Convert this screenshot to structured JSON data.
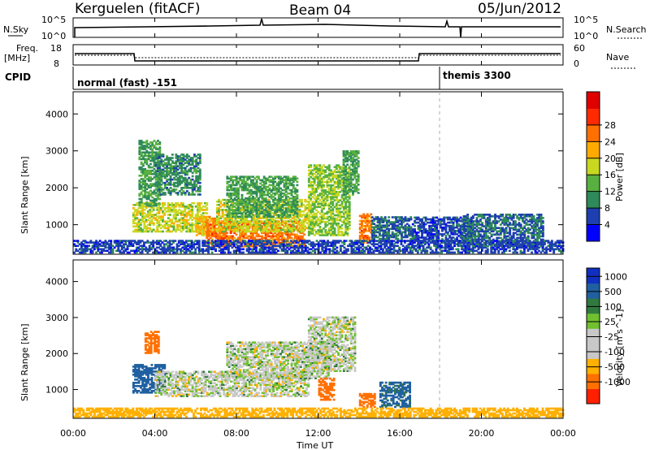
{
  "header": {
    "station": "Kerguelen (fitACF)",
    "beam": "Beam 04",
    "date": "05/Jun/2012"
  },
  "summary_panels": {
    "nsky": {
      "label": "N.Sky",
      "ticks": [
        "10^5",
        "10^0"
      ]
    },
    "nsearch": {
      "label": "N.Search",
      "ticks": [
        "10^5",
        "10^0"
      ]
    },
    "freq": {
      "label_1": "Freq.",
      "label_2": "[MHz]",
      "ticks": [
        "18",
        "8"
      ]
    },
    "nave": {
      "label": "Nave",
      "ticks": [
        "60",
        "0"
      ]
    },
    "cpid": {
      "label": "CPID",
      "modes": [
        "normal (fast) -151",
        "themis 3300"
      ]
    }
  },
  "colors": {
    "power": [
      "#0000ff",
      "#1e3fb0",
      "#2f8a5a",
      "#58b040",
      "#c8d820",
      "#ffaa00",
      "#ff7000",
      "#ff2a00",
      "#e00000"
    ],
    "velocity": [
      "#1030c0",
      "#2060a0",
      "#307a40",
      "#70c030",
      "#c8c8c8",
      "#c8c8c8",
      "#ffb000",
      "#ff7000",
      "#ff2000"
    ]
  },
  "chart_data": [
    {
      "type": "heatmap",
      "quantity": "power",
      "ylabel": "Slant Range [km]",
      "ylim": [
        200,
        4600
      ],
      "yticks": [
        "1000",
        "2000",
        "3000",
        "4000"
      ],
      "xlim": [
        "00:00",
        "24:00"
      ],
      "colorbar": {
        "label": "Power [dB]",
        "ticks": [
          "4",
          "8",
          "12",
          "16",
          "20",
          "24",
          "28"
        ]
      },
      "regions": [
        {
          "t": [
            2.9,
            6.5
          ],
          "r": [
            800,
            1600
          ],
          "v": 18
        },
        {
          "t": [
            3.2,
            4.2
          ],
          "r": [
            1500,
            3300
          ],
          "v": 12
        },
        {
          "t": [
            4.0,
            6.2
          ],
          "r": [
            1800,
            2900
          ],
          "v": 10
        },
        {
          "t": [
            6.0,
            7.0
          ],
          "r": [
            700,
            1200
          ],
          "v": 22
        },
        {
          "t": [
            6.5,
            11.3
          ],
          "r": [
            400,
            1100
          ],
          "v": 26
        },
        {
          "t": [
            7.0,
            11.5
          ],
          "r": [
            800,
            1700
          ],
          "v": 18
        },
        {
          "t": [
            7.5,
            11.0
          ],
          "r": [
            1200,
            2300
          ],
          "v": 12
        },
        {
          "t": [
            11.5,
            13.5
          ],
          "r": [
            700,
            2600
          ],
          "v": 16
        },
        {
          "t": [
            13.2,
            14.0
          ],
          "r": [
            1800,
            3000
          ],
          "v": 12
        },
        {
          "t": [
            14.0,
            14.6
          ],
          "r": [
            500,
            1300
          ],
          "v": 26
        },
        {
          "t": [
            14.6,
            16.5
          ],
          "r": [
            600,
            1200
          ],
          "v": 8
        },
        {
          "t": [
            16.5,
            19.5
          ],
          "r": [
            500,
            1200
          ],
          "v": 6
        },
        {
          "t": [
            19.0,
            23.0
          ],
          "r": [
            400,
            1300
          ],
          "v": 8
        },
        {
          "t": [
            0.0,
            24.0
          ],
          "r": [
            230,
            550
          ],
          "v": 6
        }
      ]
    },
    {
      "type": "heatmap",
      "quantity": "velocity",
      "ylabel": "Slant Range [km]",
      "ylim": [
        200,
        4600
      ],
      "yticks": [
        "1000",
        "2000",
        "3000",
        "4000"
      ],
      "xlabel": "Time UT",
      "xticks": [
        "00:00",
        "04:00",
        "08:00",
        "12:00",
        "16:00",
        "20:00",
        "00:00"
      ],
      "colorbar": {
        "label": "Velocity [m s^-1]",
        "ticks": [
          "1000",
          "500",
          "100",
          "25",
          "-25",
          "-100",
          "-500",
          "-1000"
        ]
      },
      "regions": [
        {
          "t": [
            2.9,
            4.5
          ],
          "r": [
            900,
            1700
          ],
          "v": 150
        },
        {
          "t": [
            3.5,
            4.2
          ],
          "r": [
            2000,
            2600
          ],
          "v": -300
        },
        {
          "t": [
            4.0,
            11.5
          ],
          "r": [
            800,
            1500
          ],
          "v": 0
        },
        {
          "t": [
            7.5,
            12.5
          ],
          "r": [
            1300,
            2300
          ],
          "v": 0
        },
        {
          "t": [
            11.5,
            13.8
          ],
          "r": [
            1500,
            3000
          ],
          "v": 0
        },
        {
          "t": [
            12.0,
            12.8
          ],
          "r": [
            700,
            1300
          ],
          "v": -200
        },
        {
          "t": [
            14.0,
            14.8
          ],
          "r": [
            500,
            900
          ],
          "v": -200
        },
        {
          "t": [
            15.0,
            16.5
          ],
          "r": [
            500,
            1200
          ],
          "v": 120
        },
        {
          "t": [
            0.0,
            24.0
          ],
          "r": [
            230,
            500
          ],
          "v": -60
        }
      ]
    }
  ]
}
